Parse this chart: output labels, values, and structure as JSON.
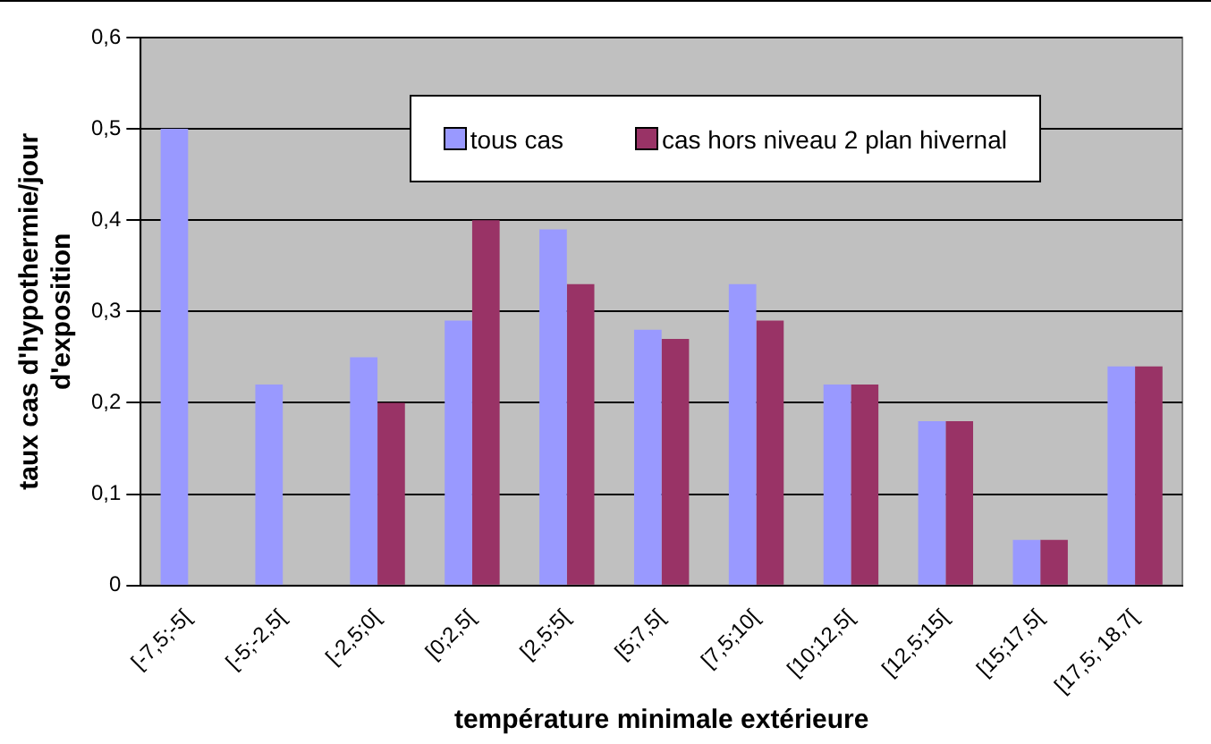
{
  "chart_data": {
    "type": "bar",
    "xlabel": "température minimale extérieure",
    "ylabel": "taux cas d'hypothermie/jour d'exposition",
    "categories": [
      "[-7,5;-5[",
      "[-5;-2,5[",
      "[-2,5;0[",
      "[0;2,5[",
      "[2,5;5[",
      "[5;7,5[",
      "[7,5;10[",
      "[10;12,5[",
      "[12,5;15[",
      "[15;17,5[",
      "[17,5; 18,7["
    ],
    "series": [
      {
        "name": "tous cas",
        "color": "#9999ff",
        "values": [
          0.5,
          0.22,
          0.25,
          0.29,
          0.39,
          0.28,
          0.33,
          0.22,
          0.18,
          0.05,
          0.24
        ]
      },
      {
        "name": "cas hors niveau 2 plan hivernal",
        "color": "#993366",
        "values": [
          null,
          null,
          0.2,
          0.4,
          0.33,
          0.27,
          0.29,
          0.22,
          0.18,
          0.05,
          0.24
        ]
      }
    ],
    "ylim": [
      0,
      0.6
    ],
    "yticks": [
      0,
      {
        "value": 0.1,
        "label": "0,1"
      },
      {
        "value": 0.2,
        "label": "0,2"
      },
      {
        "value": 0.3,
        "label": "0,3"
      },
      {
        "value": 0.4,
        "label": "0,4"
      },
      {
        "value": 0.5,
        "label": "0,5"
      },
      {
        "value": 0.6,
        "label": "0,6"
      }
    ],
    "grid": "y",
    "legend": "top right"
  }
}
